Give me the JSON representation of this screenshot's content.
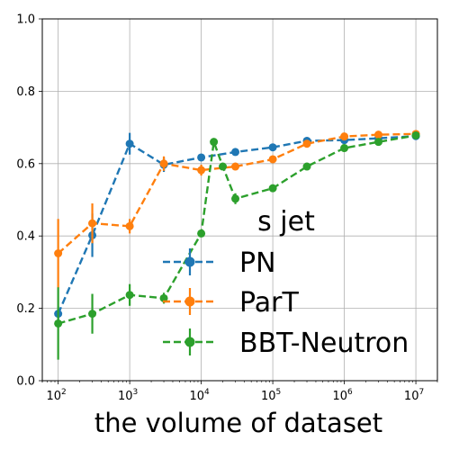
{
  "chart_data": {
    "type": "line",
    "xlabel": "the volume of dataset",
    "ylabel": "",
    "xscale": "log",
    "xlim": [
      60,
      20000000
    ],
    "ylim": [
      0,
      1.0
    ],
    "grid": true,
    "legend": {
      "title": "s jet",
      "placement": "lower-right"
    },
    "x_ticks": [
      {
        "value": 100,
        "base": "10",
        "exp": "2"
      },
      {
        "value": 1000,
        "base": "10",
        "exp": "3"
      },
      {
        "value": 10000,
        "base": "10",
        "exp": "4"
      },
      {
        "value": 100000,
        "base": "10",
        "exp": "5"
      },
      {
        "value": 1000000,
        "base": "10",
        "exp": "6"
      },
      {
        "value": 10000000,
        "base": "10",
        "exp": "7"
      }
    ],
    "y_ticks": [
      "0.0",
      "0.2",
      "0.4",
      "0.6",
      "0.8",
      "1.0"
    ],
    "series": [
      {
        "name": "PN",
        "color": "#1f77b4",
        "points": [
          {
            "x": 100,
            "y": 0.185,
            "err": 0.02
          },
          {
            "x": 300,
            "y": 0.402,
            "err": 0.06
          },
          {
            "x": 1000,
            "y": 0.655,
            "err": 0.03
          },
          {
            "x": 3000,
            "y": 0.597,
            "err": 0.02
          },
          {
            "x": 10000,
            "y": 0.617,
            "err": 0.01
          },
          {
            "x": 30000,
            "y": 0.632,
            "err": 0.01
          },
          {
            "x": 100000,
            "y": 0.645,
            "err": 0.01
          },
          {
            "x": 300000,
            "y": 0.663,
            "err": 0.01
          },
          {
            "x": 1000000,
            "y": 0.665,
            "err": 0.01
          },
          {
            "x": 3000000,
            "y": 0.67,
            "err": 0.01
          },
          {
            "x": 10000000,
            "y": 0.676,
            "err": 0.01
          }
        ]
      },
      {
        "name": "ParT",
        "color": "#ff7f0e",
        "points": [
          {
            "x": 100,
            "y": 0.352,
            "err": 0.095
          },
          {
            "x": 300,
            "y": 0.435,
            "err": 0.055
          },
          {
            "x": 1000,
            "y": 0.427,
            "err": 0.02
          },
          {
            "x": 3000,
            "y": 0.6,
            "err": 0.02
          },
          {
            "x": 10000,
            "y": 0.582,
            "err": 0.015
          },
          {
            "x": 30000,
            "y": 0.592,
            "err": 0.01
          },
          {
            "x": 100000,
            "y": 0.612,
            "err": 0.01
          },
          {
            "x": 300000,
            "y": 0.655,
            "err": 0.01
          },
          {
            "x": 1000000,
            "y": 0.675,
            "err": 0.01
          },
          {
            "x": 3000000,
            "y": 0.68,
            "err": 0.01
          },
          {
            "x": 10000000,
            "y": 0.682,
            "err": 0.01
          }
        ]
      },
      {
        "name": "BBT-Neutron",
        "color": "#2ca02c",
        "points": [
          {
            "x": 100,
            "y": 0.158,
            "err": 0.1
          },
          {
            "x": 300,
            "y": 0.185,
            "err": 0.055
          },
          {
            "x": 1000,
            "y": 0.237,
            "err": 0.03
          },
          {
            "x": 3000,
            "y": 0.228,
            "err": 0.015
          },
          {
            "x": 10000,
            "y": 0.407,
            "err": 0.01
          },
          {
            "x": 15000,
            "y": 0.66,
            "err": 0.01
          },
          {
            "x": 20000,
            "y": 0.592,
            "err": 0.01
          },
          {
            "x": 30000,
            "y": 0.503,
            "err": 0.015
          },
          {
            "x": 100000,
            "y": 0.532,
            "err": 0.01
          },
          {
            "x": 300000,
            "y": 0.592,
            "err": 0.01
          },
          {
            "x": 1000000,
            "y": 0.643,
            "err": 0.01
          },
          {
            "x": 3000000,
            "y": 0.66,
            "err": 0.01
          },
          {
            "x": 10000000,
            "y": 0.678,
            "err": 0.01
          }
        ]
      }
    ]
  }
}
